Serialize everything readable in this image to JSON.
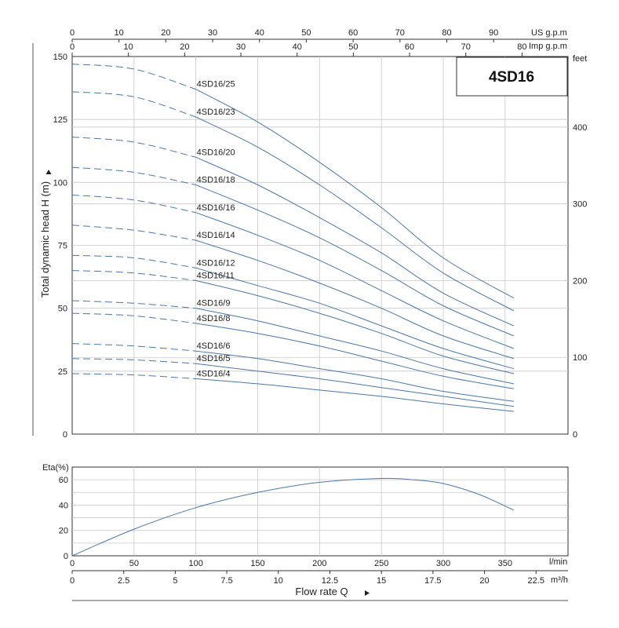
{
  "chart_data": {
    "type": "line",
    "title": "4SD16",
    "head_chart": {
      "ylabel": "Total dynamic head H (m)",
      "y_ticks": [
        "0",
        "25",
        "50",
        "75",
        "100",
        "125",
        "150"
      ],
      "ylim": [
        0,
        150
      ],
      "y2label": "feet",
      "y2_ticks": [
        "0",
        "100",
        "200",
        "300",
        "400"
      ],
      "y2lim": [
        0,
        492
      ],
      "top_axis_us": {
        "label": "US g.p.m",
        "ticks": [
          "0",
          "10",
          "20",
          "30",
          "40",
          "50",
          "60",
          "70",
          "80",
          "90"
        ]
      },
      "top_axis_imp": {
        "label": "Imp g.p.m",
        "ticks": [
          "0",
          "10",
          "20",
          "30",
          "40",
          "50",
          "60",
          "70",
          "80"
        ]
      },
      "x_lpm_max": 360,
      "dashed_until_lpm": 100,
      "series": [
        {
          "name": "4SD16/25",
          "x": [
            0,
            50,
            100,
            150,
            200,
            250,
            300,
            357
          ],
          "y": [
            147,
            145,
            137,
            124,
            108,
            90,
            70,
            54
          ]
        },
        {
          "name": "4SD16/23",
          "x": [
            0,
            50,
            100,
            150,
            200,
            250,
            300,
            357
          ],
          "y": [
            136,
            134,
            126,
            114,
            99,
            82,
            64,
            49
          ]
        },
        {
          "name": "4SD16/20",
          "x": [
            0,
            50,
            100,
            150,
            200,
            250,
            300,
            357
          ],
          "y": [
            118,
            116,
            110,
            99,
            86,
            72,
            56,
            43
          ]
        },
        {
          "name": "4SD16/18",
          "x": [
            0,
            50,
            100,
            150,
            200,
            250,
            300,
            357
          ],
          "y": [
            106,
            104,
            99,
            89,
            78,
            65,
            51,
            39
          ]
        },
        {
          "name": "4SD16/16",
          "x": [
            0,
            50,
            100,
            150,
            200,
            250,
            300,
            357
          ],
          "y": [
            95,
            93,
            88,
            79,
            69,
            57,
            45,
            34
          ]
        },
        {
          "name": "4SD16/14",
          "x": [
            0,
            50,
            100,
            150,
            200,
            250,
            300,
            357
          ],
          "y": [
            83,
            81,
            77,
            69,
            60,
            50,
            39,
            30
          ]
        },
        {
          "name": "4SD16/12",
          "x": [
            0,
            50,
            100,
            150,
            200,
            250,
            300,
            357
          ],
          "y": [
            71,
            70,
            66,
            59,
            52,
            43,
            34,
            26
          ]
        },
        {
          "name": "4SD16/11",
          "x": [
            0,
            50,
            100,
            150,
            200,
            250,
            300,
            357
          ],
          "y": [
            65,
            64,
            61,
            55,
            48,
            40,
            31,
            24
          ]
        },
        {
          "name": "4SD16/9",
          "x": [
            0,
            50,
            100,
            150,
            200,
            250,
            300,
            357
          ],
          "y": [
            53,
            52,
            50,
            45,
            39,
            33,
            26,
            20
          ]
        },
        {
          "name": "4SD16/8",
          "x": [
            0,
            50,
            100,
            150,
            200,
            250,
            300,
            357
          ],
          "y": [
            48,
            47,
            44,
            40,
            35,
            29,
            23,
            18
          ]
        },
        {
          "name": "4SD16/6",
          "x": [
            0,
            50,
            100,
            150,
            200,
            250,
            300,
            357
          ],
          "y": [
            36,
            35,
            33,
            30,
            26,
            22,
            17,
            13
          ]
        },
        {
          "name": "4SD16/5",
          "x": [
            0,
            50,
            100,
            150,
            200,
            250,
            300,
            357
          ],
          "y": [
            30,
            29.5,
            28,
            25,
            22,
            18.5,
            15,
            11
          ]
        },
        {
          "name": "4SD16/4",
          "x": [
            0,
            50,
            100,
            150,
            200,
            250,
            300,
            357
          ],
          "y": [
            24,
            23.5,
            22,
            20,
            17.5,
            15,
            12,
            9
          ]
        }
      ]
    },
    "eta_chart": {
      "ylabel": "Eta(%)",
      "y_ticks": [
        "0",
        "20",
        "40",
        "60"
      ],
      "ylim": [
        0,
        70
      ],
      "x": [
        0,
        50,
        100,
        150,
        200,
        250,
        275,
        300,
        330,
        357
      ],
      "y": [
        0,
        21,
        38,
        50,
        58,
        61,
        60,
        57,
        48,
        36
      ]
    },
    "x_axis_lpm": {
      "label": "l/min",
      "ticks": [
        "0",
        "50",
        "100",
        "150",
        "200",
        "250",
        "300",
        "350"
      ]
    },
    "x_axis_m3h": {
      "label": "m³/h",
      "ticks": [
        "0",
        "2.5",
        "5",
        "7.5",
        "10",
        "12.5",
        "15",
        "17.5",
        "20",
        "22.5"
      ]
    },
    "xlabel": "Flow rate Q"
  }
}
